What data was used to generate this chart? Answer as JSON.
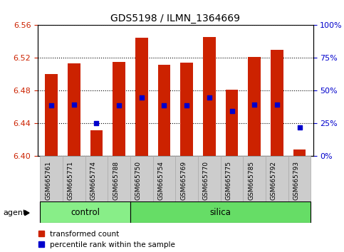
{
  "title": "GDS5198 / ILMN_1364669",
  "samples": [
    "GSM665761",
    "GSM665771",
    "GSM665774",
    "GSM665788",
    "GSM665750",
    "GSM665754",
    "GSM665769",
    "GSM665770",
    "GSM665775",
    "GSM665785",
    "GSM665792",
    "GSM665793"
  ],
  "groups": [
    "control",
    "control",
    "control",
    "control",
    "silica",
    "silica",
    "silica",
    "silica",
    "silica",
    "silica",
    "silica",
    "silica"
  ],
  "bar_values": [
    6.5,
    6.513,
    6.432,
    6.515,
    6.545,
    6.512,
    6.514,
    6.546,
    6.481,
    6.521,
    6.53,
    6.408
  ],
  "blue_dot_values": [
    6.462,
    6.463,
    6.44,
    6.462,
    6.472,
    6.462,
    6.462,
    6.472,
    6.455,
    6.463,
    6.463,
    6.435
  ],
  "y_min": 6.4,
  "y_max": 6.56,
  "y_ticks": [
    6.4,
    6.44,
    6.48,
    6.52,
    6.56
  ],
  "right_y_ticks": [
    0,
    25,
    50,
    75,
    100
  ],
  "right_y_labels": [
    "0%",
    "25%",
    "50%",
    "75%",
    "100%"
  ],
  "bar_color": "#cc2200",
  "blue_color": "#0000cc",
  "bar_width": 0.55,
  "control_color": "#88ee88",
  "silica_color": "#66dd66",
  "agent_label": "agent",
  "group_labels": [
    "control",
    "silica"
  ],
  "legend_items": [
    "transformed count",
    "percentile rank within the sample"
  ],
  "left_tick_color": "#cc2200",
  "right_tick_color": "#0000cc",
  "background_color": "#ffffff",
  "tick_label_bg": "#cccccc",
  "n_control": 4,
  "n_silica": 8
}
